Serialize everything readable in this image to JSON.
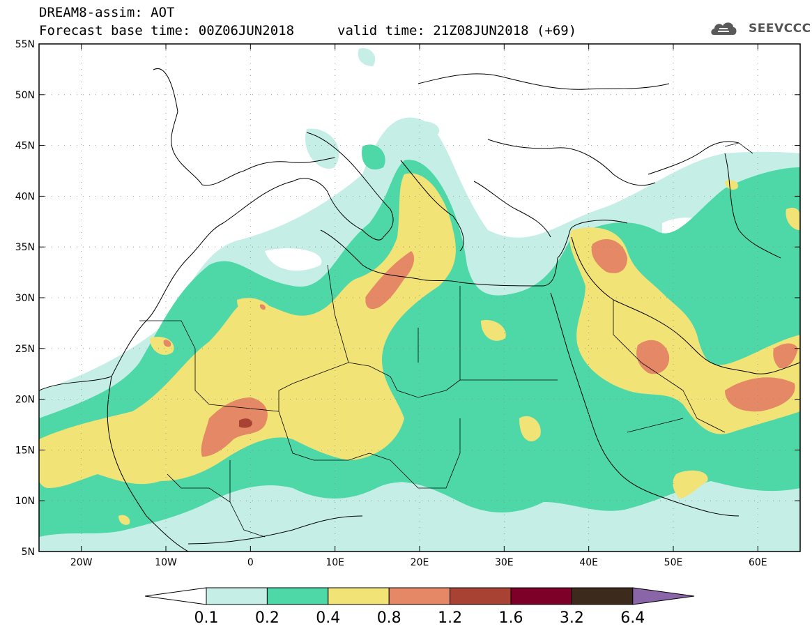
{
  "header": {
    "title": "DREAM8-assim: AOT",
    "base_time": "Forecast base time: 00Z06JUN2018",
    "valid_time": "valid time: 21Z08JUN2018 (+69)"
  },
  "logo": {
    "text": "SEEVCCC",
    "icon": "cloud-icon"
  },
  "map": {
    "lon_range": [
      -25,
      65
    ],
    "lat_range": [
      5,
      55
    ],
    "lat_ticks": [
      {
        "value": 55,
        "label": "55N"
      },
      {
        "value": 50,
        "label": "50N"
      },
      {
        "value": 45,
        "label": "45N"
      },
      {
        "value": 40,
        "label": "40N"
      },
      {
        "value": 35,
        "label": "35N"
      },
      {
        "value": 30,
        "label": "30N"
      },
      {
        "value": 25,
        "label": "25N"
      },
      {
        "value": 20,
        "label": "20N"
      },
      {
        "value": 15,
        "label": "15N"
      },
      {
        "value": 10,
        "label": "10N"
      },
      {
        "value": 5,
        "label": "5N"
      }
    ],
    "lon_ticks": [
      {
        "value": -20,
        "label": "20W"
      },
      {
        "value": -10,
        "label": "10W"
      },
      {
        "value": 0,
        "label": "0"
      },
      {
        "value": 10,
        "label": "10E"
      },
      {
        "value": 20,
        "label": "20E"
      },
      {
        "value": 30,
        "label": "30E"
      },
      {
        "value": 40,
        "label": "40E"
      },
      {
        "value": 50,
        "label": "50E"
      },
      {
        "value": 60,
        "label": "60E"
      }
    ],
    "colors": {
      "level_0.1": "#c5efe6",
      "level_0.2": "#4ed8a8",
      "level_0.4": "#f2e376",
      "level_0.8": "#e58866",
      "level_1.2": "#a84233",
      "level_1.6": "#7d0028",
      "level_3.2": "#3c2a1c",
      "level_6.4": "#8a66a8"
    }
  },
  "colorbar": {
    "labels": [
      "0.1",
      "0.2",
      "0.4",
      "0.8",
      "1.2",
      "1.6",
      "3.2",
      "6.4"
    ],
    "colors": [
      "#c5efe6",
      "#4ed8a8",
      "#f2e376",
      "#e58866",
      "#a84233",
      "#7d0028",
      "#3c2a1c"
    ],
    "under_color": "#ffffff",
    "over_color": "#8a66a8"
  }
}
